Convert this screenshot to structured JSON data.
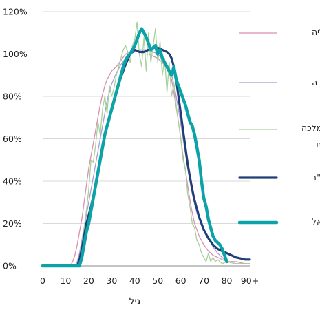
{
  "chart_data": {
    "type": "line",
    "xlabel": "גיל",
    "ylabel": "",
    "xlim": [
      0,
      90
    ],
    "ylim": [
      0,
      1.2
    ],
    "x_ticks": [
      "0",
      "10",
      "20",
      "30",
      "40",
      "50",
      "60",
      "70",
      "80",
      "90+"
    ],
    "y_ticks": [
      "0%",
      "20%",
      "40%",
      "60%",
      "80%",
      "100%",
      "120%"
    ],
    "grid": "horizontal",
    "legend_position": "right",
    "series": [
      {
        "name": "אוסטרליה",
        "color": "#d98fb0",
        "width": 1.3,
        "points": [
          [
            0,
            0
          ],
          [
            12,
            0
          ],
          [
            13,
            0.02
          ],
          [
            14,
            0.05
          ],
          [
            15,
            0.1
          ],
          [
            16,
            0.16
          ],
          [
            17,
            0.22
          ],
          [
            18,
            0.3
          ],
          [
            19,
            0.38
          ],
          [
            20,
            0.46
          ],
          [
            21,
            0.52
          ],
          [
            22,
            0.58
          ],
          [
            23,
            0.64
          ],
          [
            24,
            0.7
          ],
          [
            25,
            0.76
          ],
          [
            26,
            0.81
          ],
          [
            27,
            0.85
          ],
          [
            28,
            0.88
          ],
          [
            29,
            0.9
          ],
          [
            30,
            0.92
          ],
          [
            32,
            0.94
          ],
          [
            34,
            0.97
          ],
          [
            36,
            1.0
          ],
          [
            38,
            1.01
          ],
          [
            40,
            1.02
          ],
          [
            42,
            1.01
          ],
          [
            44,
            1.0
          ],
          [
            46,
            1.0
          ],
          [
            48,
            0.99
          ],
          [
            50,
            0.98
          ],
          [
            52,
            0.96
          ],
          [
            54,
            0.93
          ],
          [
            56,
            0.88
          ],
          [
            57,
            0.82
          ],
          [
            58,
            0.75
          ],
          [
            59,
            0.68
          ],
          [
            60,
            0.6
          ],
          [
            61,
            0.52
          ],
          [
            62,
            0.45
          ],
          [
            63,
            0.38
          ],
          [
            64,
            0.31
          ],
          [
            65,
            0.25
          ],
          [
            66,
            0.2
          ],
          [
            67,
            0.17
          ],
          [
            68,
            0.14
          ],
          [
            69,
            0.12
          ],
          [
            70,
            0.1
          ],
          [
            72,
            0.07
          ],
          [
            74,
            0.05
          ],
          [
            76,
            0.04
          ],
          [
            78,
            0.03
          ],
          [
            80,
            0.02
          ],
          [
            84,
            0.02
          ],
          [
            88,
            0.01
          ],
          [
            90,
            0.01
          ]
        ]
      },
      {
        "name": "קנדה",
        "color": "#a99ad6",
        "width": 1.3,
        "points": [
          [
            0,
            0
          ],
          [
            14,
            0
          ],
          [
            15,
            0.02
          ],
          [
            16,
            0.06
          ],
          [
            17,
            0.12
          ],
          [
            18,
            0.18
          ],
          [
            19,
            0.24
          ],
          [
            20,
            0.3
          ],
          [
            21,
            0.36
          ],
          [
            22,
            0.42
          ],
          [
            23,
            0.48
          ],
          [
            24,
            0.54
          ],
          [
            25,
            0.6
          ],
          [
            26,
            0.66
          ],
          [
            27,
            0.72
          ],
          [
            28,
            0.78
          ],
          [
            29,
            0.82
          ],
          [
            30,
            0.86
          ],
          [
            32,
            0.91
          ],
          [
            34,
            0.95
          ],
          [
            36,
            0.98
          ],
          [
            38,
            1.0
          ],
          [
            40,
            1.01
          ],
          [
            42,
            1.02
          ],
          [
            44,
            1.02
          ],
          [
            46,
            1.02
          ],
          [
            48,
            1.01
          ],
          [
            50,
            1.0
          ],
          [
            52,
            0.98
          ],
          [
            54,
            0.95
          ],
          [
            56,
            0.9
          ],
          [
            57,
            0.86
          ],
          [
            58,
            0.8
          ],
          [
            59,
            0.74
          ],
          [
            60,
            0.67
          ],
          [
            61,
            0.6
          ],
          [
            62,
            0.53
          ],
          [
            63,
            0.46
          ],
          [
            64,
            0.4
          ],
          [
            65,
            0.34
          ],
          [
            66,
            0.29
          ],
          [
            67,
            0.25
          ],
          [
            68,
            0.22
          ],
          [
            69,
            0.19
          ],
          [
            70,
            0.17
          ],
          [
            72,
            0.13
          ],
          [
            74,
            0.09
          ],
          [
            76,
            0.06
          ],
          [
            78,
            0.04
          ],
          [
            80,
            0.02
          ],
          [
            84,
            0.01
          ],
          [
            90,
            0.01
          ]
        ]
      },
      {
        "name": "הממלכה המאוחדת",
        "color": "#a6d19a",
        "width": 1.3,
        "points": [
          [
            0,
            0
          ],
          [
            15,
            0
          ],
          [
            16,
            0.04
          ],
          [
            17,
            0.1
          ],
          [
            18,
            0.18
          ],
          [
            19,
            0.26
          ],
          [
            20,
            0.36
          ],
          [
            21,
            0.5
          ],
          [
            22,
            0.49
          ],
          [
            23,
            0.57
          ],
          [
            24,
            0.68
          ],
          [
            25,
            0.62
          ],
          [
            26,
            0.74
          ],
          [
            27,
            0.8
          ],
          [
            28,
            0.72
          ],
          [
            29,
            0.85
          ],
          [
            30,
            0.8
          ],
          [
            31,
            0.84
          ],
          [
            32,
            0.9
          ],
          [
            33,
            0.94
          ],
          [
            34,
            0.98
          ],
          [
            35,
            1.02
          ],
          [
            36,
            1.04
          ],
          [
            37,
            1.01
          ],
          [
            38,
            0.96
          ],
          [
            39,
            1.04
          ],
          [
            40,
            1.07
          ],
          [
            41,
            1.15
          ],
          [
            42,
            1.0
          ],
          [
            43,
            0.94
          ],
          [
            44,
            1.08
          ],
          [
            45,
            0.92
          ],
          [
            46,
            1.1
          ],
          [
            47,
            0.96
          ],
          [
            48,
            1.04
          ],
          [
            49,
            1.12
          ],
          [
            50,
            0.96
          ],
          [
            51,
            1.06
          ],
          [
            52,
            0.9
          ],
          [
            53,
            0.98
          ],
          [
            54,
            0.82
          ],
          [
            55,
            0.96
          ],
          [
            56,
            0.8
          ],
          [
            57,
            0.86
          ],
          [
            58,
            0.76
          ],
          [
            59,
            0.68
          ],
          [
            60,
            0.6
          ],
          [
            61,
            0.5
          ],
          [
            62,
            0.46
          ],
          [
            63,
            0.34
          ],
          [
            64,
            0.28
          ],
          [
            65,
            0.2
          ],
          [
            66,
            0.18
          ],
          [
            67,
            0.12
          ],
          [
            68,
            0.1
          ],
          [
            69,
            0.06
          ],
          [
            70,
            0.04
          ],
          [
            71,
            0.02
          ],
          [
            72,
            0.06
          ],
          [
            73,
            0.02
          ],
          [
            74,
            0.04
          ],
          [
            75,
            0.02
          ],
          [
            76,
            0.03
          ],
          [
            78,
            0.01
          ],
          [
            80,
            0.02
          ],
          [
            84,
            0.01
          ],
          [
            90,
            0.01
          ]
        ]
      },
      {
        "name": "ארה\"ב",
        "color": "#203f78",
        "width": 3.2,
        "points": [
          [
            0,
            0
          ],
          [
            15,
            0
          ],
          [
            16,
            0.03
          ],
          [
            17,
            0.08
          ],
          [
            18,
            0.14
          ],
          [
            19,
            0.2
          ],
          [
            20,
            0.24
          ],
          [
            21,
            0.28
          ],
          [
            22,
            0.33
          ],
          [
            23,
            0.38
          ],
          [
            24,
            0.44
          ],
          [
            25,
            0.5
          ],
          [
            26,
            0.56
          ],
          [
            27,
            0.61
          ],
          [
            28,
            0.66
          ],
          [
            29,
            0.7
          ],
          [
            30,
            0.74
          ],
          [
            32,
            0.82
          ],
          [
            34,
            0.89
          ],
          [
            36,
            0.95
          ],
          [
            38,
            1.0
          ],
          [
            40,
            1.02
          ],
          [
            42,
            1.01
          ],
          [
            44,
            1.01
          ],
          [
            46,
            1.02
          ],
          [
            48,
            1.03
          ],
          [
            50,
            1.03
          ],
          [
            52,
            1.02
          ],
          [
            54,
            1.01
          ],
          [
            55,
            1.0
          ],
          [
            56,
            0.98
          ],
          [
            57,
            0.94
          ],
          [
            58,
            0.88
          ],
          [
            59,
            0.8
          ],
          [
            60,
            0.72
          ],
          [
            61,
            0.64
          ],
          [
            62,
            0.56
          ],
          [
            63,
            0.48
          ],
          [
            64,
            0.42
          ],
          [
            65,
            0.36
          ],
          [
            66,
            0.31
          ],
          [
            67,
            0.27
          ],
          [
            68,
            0.23
          ],
          [
            69,
            0.2
          ],
          [
            70,
            0.17
          ],
          [
            71,
            0.15
          ],
          [
            72,
            0.13
          ],
          [
            74,
            0.1
          ],
          [
            76,
            0.08
          ],
          [
            78,
            0.07
          ],
          [
            80,
            0.06
          ],
          [
            82,
            0.05
          ],
          [
            84,
            0.04
          ],
          [
            86,
            0.035
          ],
          [
            88,
            0.03
          ],
          [
            90,
            0.03
          ]
        ]
      },
      {
        "name": "ישראל",
        "color": "#0ba3a8",
        "width": 4.5,
        "points": [
          [
            0,
            0
          ],
          [
            16,
            0
          ],
          [
            17,
            0.04
          ],
          [
            18,
            0.1
          ],
          [
            19,
            0.16
          ],
          [
            20,
            0.2
          ],
          [
            21,
            0.26
          ],
          [
            22,
            0.32
          ],
          [
            23,
            0.38
          ],
          [
            24,
            0.44
          ],
          [
            25,
            0.5
          ],
          [
            26,
            0.56
          ],
          [
            27,
            0.62
          ],
          [
            28,
            0.66
          ],
          [
            29,
            0.7
          ],
          [
            30,
            0.74
          ],
          [
            31,
            0.78
          ],
          [
            32,
            0.82
          ],
          [
            33,
            0.86
          ],
          [
            34,
            0.9
          ],
          [
            35,
            0.94
          ],
          [
            36,
            0.97
          ],
          [
            37,
            0.99
          ],
          [
            38,
            1.0
          ],
          [
            39,
            1.02
          ],
          [
            40,
            1.04
          ],
          [
            41,
            1.07
          ],
          [
            42,
            1.1
          ],
          [
            43,
            1.12
          ],
          [
            44,
            1.1
          ],
          [
            45,
            1.08
          ],
          [
            46,
            1.05
          ],
          [
            47,
            1.02
          ],
          [
            48,
            1.03
          ],
          [
            49,
            1.04
          ],
          [
            50,
            1.0
          ],
          [
            51,
            1.02
          ],
          [
            52,
            0.98
          ],
          [
            53,
            0.96
          ],
          [
            54,
            0.94
          ],
          [
            55,
            0.92
          ],
          [
            56,
            0.9
          ],
          [
            57,
            0.94
          ],
          [
            58,
            0.88
          ],
          [
            59,
            0.85
          ],
          [
            60,
            0.82
          ],
          [
            61,
            0.79
          ],
          [
            62,
            0.76
          ],
          [
            63,
            0.72
          ],
          [
            64,
            0.68
          ],
          [
            65,
            0.66
          ],
          [
            66,
            0.62
          ],
          [
            67,
            0.56
          ],
          [
            68,
            0.5
          ],
          [
            69,
            0.4
          ],
          [
            70,
            0.32
          ],
          [
            71,
            0.28
          ],
          [
            72,
            0.22
          ],
          [
            73,
            0.18
          ],
          [
            74,
            0.14
          ],
          [
            75,
            0.12
          ],
          [
            76,
            0.11
          ],
          [
            77,
            0.1
          ],
          [
            78,
            0.08
          ],
          [
            79,
            0.05
          ],
          [
            80,
            0.02
          ]
        ]
      }
    ]
  }
}
